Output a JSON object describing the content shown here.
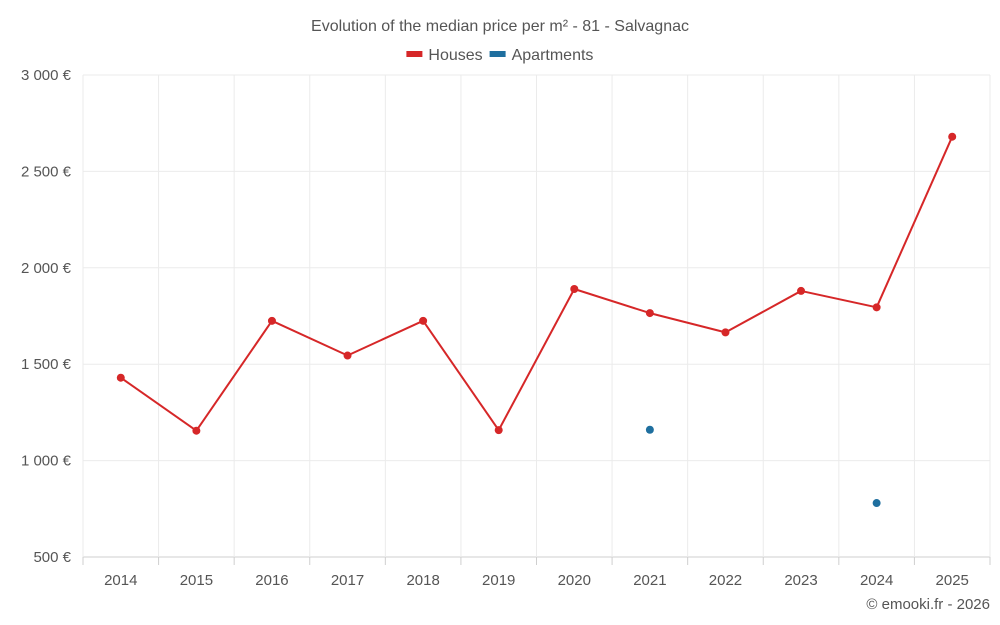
{
  "chart_data": {
    "type": "line",
    "title": "Evolution of the median price per m² - 81 - Salvagnac",
    "categories": [
      "2014",
      "2015",
      "2016",
      "2017",
      "2018",
      "2019",
      "2020",
      "2021",
      "2022",
      "2023",
      "2024",
      "2025"
    ],
    "series": [
      {
        "name": "Houses",
        "color": "#d62728",
        "values": [
          1430,
          1155,
          1725,
          1545,
          1725,
          1158,
          1890,
          1765,
          1665,
          1880,
          1795,
          2680
        ]
      },
      {
        "name": "Apartments",
        "color": "#1f6f9f",
        "values": [
          null,
          null,
          null,
          null,
          null,
          null,
          null,
          1160,
          null,
          null,
          780,
          null
        ]
      }
    ],
    "ylim": [
      500,
      3000
    ],
    "yticks": [
      500,
      1000,
      1500,
      2000,
      2500,
      3000
    ],
    "ytick_labels": [
      "500 €",
      "1 000 €",
      "1 500 €",
      "2 000 €",
      "2 500 €",
      "3 000 €"
    ],
    "xlabel": "",
    "ylabel": "",
    "grid": true,
    "legend_position": "top-center"
  },
  "credit": "© emooki.fr - 2026"
}
